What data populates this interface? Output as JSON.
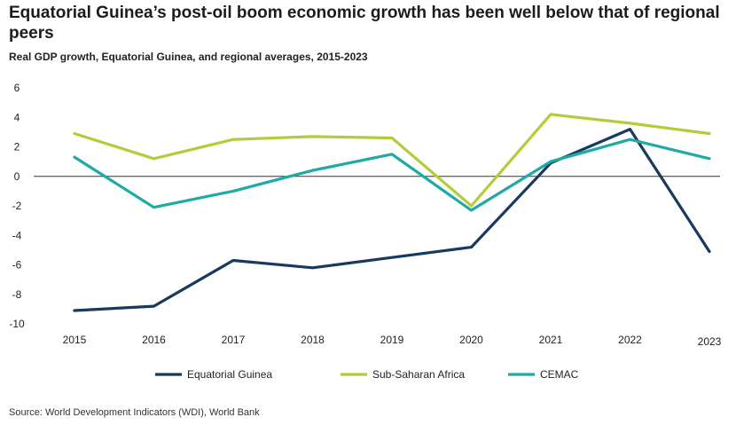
{
  "title": "Equatorial Guinea’s post-oil boom economic growth has been well below that of regional peers",
  "subtitle": "Real GDP growth, Equatorial Guinea, and regional averages, 2015-2023",
  "source": "Source: World Development Indicators (WDI), World Bank",
  "chart_data": {
    "type": "line",
    "x": [
      "2015",
      "2016",
      "2017",
      "2018",
      "2019",
      "2020",
      "2021",
      "2022",
      "2023"
    ],
    "ylim": [
      -10,
      6
    ],
    "yticks": [
      6,
      4,
      2,
      0,
      -2,
      -4,
      -6,
      -8,
      -10
    ],
    "grid": false,
    "legend_position": "bottom",
    "series": [
      {
        "name": "Equatorial Guinea",
        "color": "#173a5e",
        "values": [
          -9.1,
          -8.8,
          -5.7,
          -6.2,
          -5.5,
          -4.8,
          0.9,
          3.2,
          -5.1
        ]
      },
      {
        "name": "Sub-Saharan Africa",
        "color": "#b5cc3a",
        "values": [
          2.9,
          1.2,
          2.5,
          2.7,
          2.6,
          -2.0,
          4.2,
          3.6,
          2.9
        ]
      },
      {
        "name": "CEMAC",
        "color": "#1eaaa5",
        "values": [
          1.3,
          -2.1,
          -1.0,
          0.4,
          1.5,
          -2.3,
          1.0,
          2.5,
          1.2
        ]
      }
    ]
  }
}
